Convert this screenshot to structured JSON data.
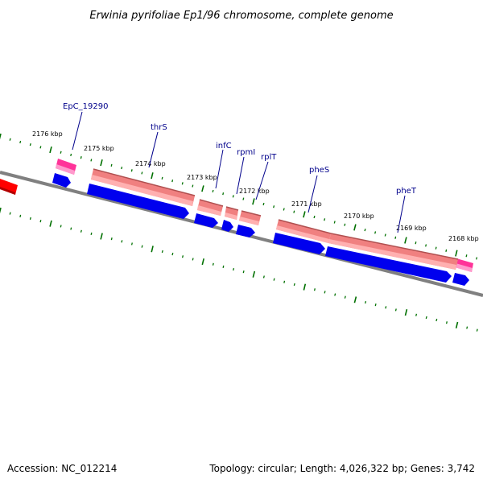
{
  "title": "Erwinia pyrifoliae Ep1/96 chromosome, complete genome",
  "footer": {
    "accession": "Accession: NC_012214",
    "summary": "Topology: circular; Length: 4,026,322 bp; Genes: 3,742"
  },
  "colors": {
    "backbone": "#808080",
    "tick": "#007000",
    "cds": "#0000ee",
    "gene_bar": "#f08080",
    "gene_bar_edge": "#b05050",
    "trna": "#ff3399",
    "other": "#ff0000",
    "gene_label": "#00008b"
  },
  "kbp_labels": [
    "2176 kbp",
    "2175 kbp",
    "2174 kbp",
    "2173 kbp",
    "2172 kbp",
    "2171 kbp",
    "2170 kbp",
    "2169 kbp",
    "2168 kbp"
  ],
  "gene_labels": [
    "EpC_19290",
    "thrS",
    "infC",
    "rpmI",
    "rplT",
    "pheS",
    "pheT"
  ]
}
